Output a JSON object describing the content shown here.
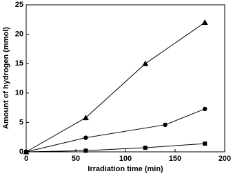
{
  "chart_data": {
    "type": "line",
    "xlabel": "Irradiation time (min)",
    "ylabel": "Amount of hydrogen (mmol)",
    "xlim": [
      0,
      200
    ],
    "xticks": [
      0,
      50,
      100,
      150,
      200
    ],
    "ylim": [
      0,
      25
    ],
    "yticks": [
      0,
      5,
      10,
      15,
      20,
      25
    ],
    "series": [
      {
        "marker": "triangle",
        "color": "#000000",
        "x": [
          0,
          60,
          120,
          180
        ],
        "values": [
          0,
          5.8,
          15,
          22
        ]
      },
      {
        "marker": "circle",
        "color": "#000000",
        "x": [
          0,
          60,
          140,
          180
        ],
        "values": [
          0,
          2.4,
          4.6,
          7.3
        ]
      },
      {
        "marker": "square",
        "color": "#000000",
        "x": [
          0,
          60,
          120,
          180
        ],
        "values": [
          0,
          0.2,
          0.7,
          1.4
        ]
      }
    ]
  }
}
